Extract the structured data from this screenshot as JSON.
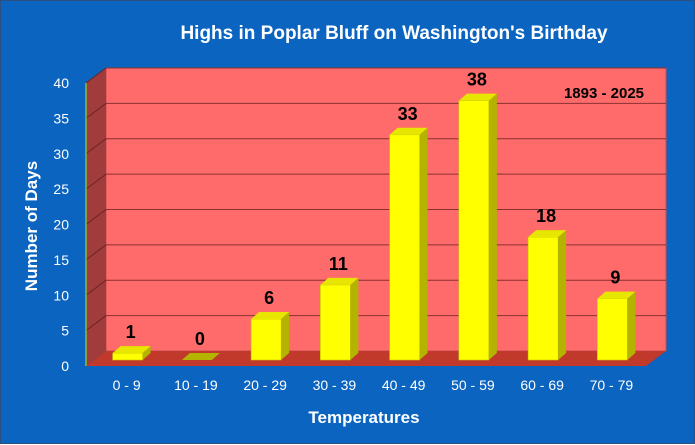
{
  "chart_data": {
    "type": "bar",
    "title": "Highs in Poplar Bluff on Washington's Birthday",
    "xlabel": "Temperatures",
    "ylabel": "Number of Days",
    "categories": [
      "0 - 9",
      "10 - 19",
      "20 - 29",
      "30 - 39",
      "40 - 49",
      "50 - 59",
      "60 - 69",
      "70 - 79"
    ],
    "values": [
      1,
      0,
      6,
      11,
      33,
      38,
      18,
      9
    ],
    "ylim": [
      0,
      40
    ],
    "yticks": [
      0,
      5,
      10,
      15,
      20,
      25,
      30,
      35,
      40
    ],
    "annotation": "1893 - 2025",
    "grid": true,
    "legend": "none",
    "colors": {
      "background": "#0b64c0",
      "plot_back_wall": "#ff6b6b",
      "plot_side_wall": "#a03c3c",
      "floor": "#c0392b",
      "bar_front": "#ffff00",
      "bar_side": "#b3b300",
      "bar_top": "#e6e600"
    }
  }
}
